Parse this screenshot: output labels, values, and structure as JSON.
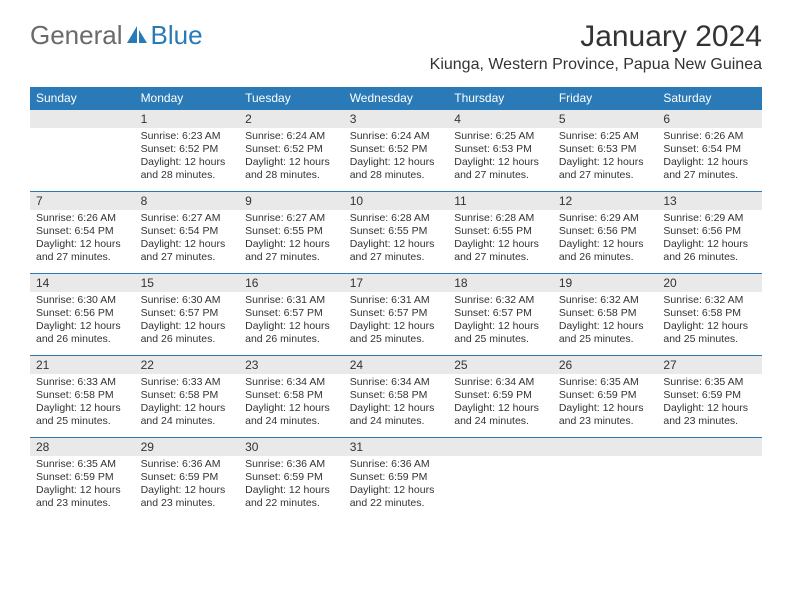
{
  "logo": {
    "text1": "General",
    "text2": "Blue",
    "logo_color_gray": "#6a6a6a",
    "logo_color_blue": "#2a7ab8"
  },
  "title": "January 2024",
  "location": "Kiunga, Western Province, Papua New Guinea",
  "colors": {
    "header_bg": "#2a7ab8",
    "header_text": "#ffffff",
    "daynum_bg": "#e9e9e9",
    "border_blue": "#2a7ab8",
    "text": "#333333",
    "page_bg": "#ffffff"
  },
  "fonts": {
    "title_size": 30,
    "location_size": 16,
    "dayhead_size": 12,
    "body_size": 10.5
  },
  "day_headers": [
    "Sunday",
    "Monday",
    "Tuesday",
    "Wednesday",
    "Thursday",
    "Friday",
    "Saturday"
  ],
  "weeks": [
    [
      {
        "empty": true
      },
      {
        "day": "1",
        "sunrise": "Sunrise: 6:23 AM",
        "sunset": "Sunset: 6:52 PM",
        "daylight1": "Daylight: 12 hours",
        "daylight2": "and 28 minutes."
      },
      {
        "day": "2",
        "sunrise": "Sunrise: 6:24 AM",
        "sunset": "Sunset: 6:52 PM",
        "daylight1": "Daylight: 12 hours",
        "daylight2": "and 28 minutes."
      },
      {
        "day": "3",
        "sunrise": "Sunrise: 6:24 AM",
        "sunset": "Sunset: 6:52 PM",
        "daylight1": "Daylight: 12 hours",
        "daylight2": "and 28 minutes."
      },
      {
        "day": "4",
        "sunrise": "Sunrise: 6:25 AM",
        "sunset": "Sunset: 6:53 PM",
        "daylight1": "Daylight: 12 hours",
        "daylight2": "and 27 minutes."
      },
      {
        "day": "5",
        "sunrise": "Sunrise: 6:25 AM",
        "sunset": "Sunset: 6:53 PM",
        "daylight1": "Daylight: 12 hours",
        "daylight2": "and 27 minutes."
      },
      {
        "day": "6",
        "sunrise": "Sunrise: 6:26 AM",
        "sunset": "Sunset: 6:54 PM",
        "daylight1": "Daylight: 12 hours",
        "daylight2": "and 27 minutes."
      }
    ],
    [
      {
        "day": "7",
        "sunrise": "Sunrise: 6:26 AM",
        "sunset": "Sunset: 6:54 PM",
        "daylight1": "Daylight: 12 hours",
        "daylight2": "and 27 minutes."
      },
      {
        "day": "8",
        "sunrise": "Sunrise: 6:27 AM",
        "sunset": "Sunset: 6:54 PM",
        "daylight1": "Daylight: 12 hours",
        "daylight2": "and 27 minutes."
      },
      {
        "day": "9",
        "sunrise": "Sunrise: 6:27 AM",
        "sunset": "Sunset: 6:55 PM",
        "daylight1": "Daylight: 12 hours",
        "daylight2": "and 27 minutes."
      },
      {
        "day": "10",
        "sunrise": "Sunrise: 6:28 AM",
        "sunset": "Sunset: 6:55 PM",
        "daylight1": "Daylight: 12 hours",
        "daylight2": "and 27 minutes."
      },
      {
        "day": "11",
        "sunrise": "Sunrise: 6:28 AM",
        "sunset": "Sunset: 6:55 PM",
        "daylight1": "Daylight: 12 hours",
        "daylight2": "and 27 minutes."
      },
      {
        "day": "12",
        "sunrise": "Sunrise: 6:29 AM",
        "sunset": "Sunset: 6:56 PM",
        "daylight1": "Daylight: 12 hours",
        "daylight2": "and 26 minutes."
      },
      {
        "day": "13",
        "sunrise": "Sunrise: 6:29 AM",
        "sunset": "Sunset: 6:56 PM",
        "daylight1": "Daylight: 12 hours",
        "daylight2": "and 26 minutes."
      }
    ],
    [
      {
        "day": "14",
        "sunrise": "Sunrise: 6:30 AM",
        "sunset": "Sunset: 6:56 PM",
        "daylight1": "Daylight: 12 hours",
        "daylight2": "and 26 minutes."
      },
      {
        "day": "15",
        "sunrise": "Sunrise: 6:30 AM",
        "sunset": "Sunset: 6:57 PM",
        "daylight1": "Daylight: 12 hours",
        "daylight2": "and 26 minutes."
      },
      {
        "day": "16",
        "sunrise": "Sunrise: 6:31 AM",
        "sunset": "Sunset: 6:57 PM",
        "daylight1": "Daylight: 12 hours",
        "daylight2": "and 26 minutes."
      },
      {
        "day": "17",
        "sunrise": "Sunrise: 6:31 AM",
        "sunset": "Sunset: 6:57 PM",
        "daylight1": "Daylight: 12 hours",
        "daylight2": "and 25 minutes."
      },
      {
        "day": "18",
        "sunrise": "Sunrise: 6:32 AM",
        "sunset": "Sunset: 6:57 PM",
        "daylight1": "Daylight: 12 hours",
        "daylight2": "and 25 minutes."
      },
      {
        "day": "19",
        "sunrise": "Sunrise: 6:32 AM",
        "sunset": "Sunset: 6:58 PM",
        "daylight1": "Daylight: 12 hours",
        "daylight2": "and 25 minutes."
      },
      {
        "day": "20",
        "sunrise": "Sunrise: 6:32 AM",
        "sunset": "Sunset: 6:58 PM",
        "daylight1": "Daylight: 12 hours",
        "daylight2": "and 25 minutes."
      }
    ],
    [
      {
        "day": "21",
        "sunrise": "Sunrise: 6:33 AM",
        "sunset": "Sunset: 6:58 PM",
        "daylight1": "Daylight: 12 hours",
        "daylight2": "and 25 minutes."
      },
      {
        "day": "22",
        "sunrise": "Sunrise: 6:33 AM",
        "sunset": "Sunset: 6:58 PM",
        "daylight1": "Daylight: 12 hours",
        "daylight2": "and 24 minutes."
      },
      {
        "day": "23",
        "sunrise": "Sunrise: 6:34 AM",
        "sunset": "Sunset: 6:58 PM",
        "daylight1": "Daylight: 12 hours",
        "daylight2": "and 24 minutes."
      },
      {
        "day": "24",
        "sunrise": "Sunrise: 6:34 AM",
        "sunset": "Sunset: 6:58 PM",
        "daylight1": "Daylight: 12 hours",
        "daylight2": "and 24 minutes."
      },
      {
        "day": "25",
        "sunrise": "Sunrise: 6:34 AM",
        "sunset": "Sunset: 6:59 PM",
        "daylight1": "Daylight: 12 hours",
        "daylight2": "and 24 minutes."
      },
      {
        "day": "26",
        "sunrise": "Sunrise: 6:35 AM",
        "sunset": "Sunset: 6:59 PM",
        "daylight1": "Daylight: 12 hours",
        "daylight2": "and 23 minutes."
      },
      {
        "day": "27",
        "sunrise": "Sunrise: 6:35 AM",
        "sunset": "Sunset: 6:59 PM",
        "daylight1": "Daylight: 12 hours",
        "daylight2": "and 23 minutes."
      }
    ],
    [
      {
        "day": "28",
        "sunrise": "Sunrise: 6:35 AM",
        "sunset": "Sunset: 6:59 PM",
        "daylight1": "Daylight: 12 hours",
        "daylight2": "and 23 minutes."
      },
      {
        "day": "29",
        "sunrise": "Sunrise: 6:36 AM",
        "sunset": "Sunset: 6:59 PM",
        "daylight1": "Daylight: 12 hours",
        "daylight2": "and 23 minutes."
      },
      {
        "day": "30",
        "sunrise": "Sunrise: 6:36 AM",
        "sunset": "Sunset: 6:59 PM",
        "daylight1": "Daylight: 12 hours",
        "daylight2": "and 22 minutes."
      },
      {
        "day": "31",
        "sunrise": "Sunrise: 6:36 AM",
        "sunset": "Sunset: 6:59 PM",
        "daylight1": "Daylight: 12 hours",
        "daylight2": "and 22 minutes."
      },
      {
        "empty": true
      },
      {
        "empty": true
      },
      {
        "empty": true
      }
    ]
  ]
}
